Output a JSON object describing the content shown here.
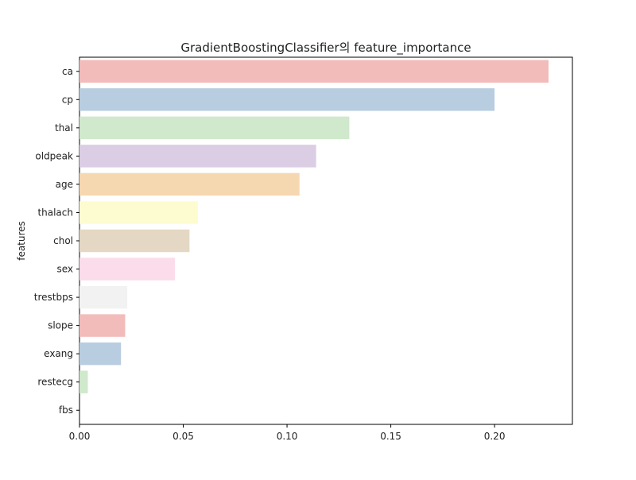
{
  "chart_data": {
    "type": "bar",
    "orientation": "horizontal",
    "title": "GradientBoostingClassifier의 feature_importance",
    "xlabel": "",
    "ylabel": "features",
    "categories": [
      "ca",
      "cp",
      "thal",
      "oldpeak",
      "age",
      "thalach",
      "chol",
      "sex",
      "trestbps",
      "slope",
      "exang",
      "restecg",
      "fbs"
    ],
    "values": [
      0.226,
      0.2,
      0.13,
      0.114,
      0.106,
      0.057,
      0.053,
      0.046,
      0.023,
      0.022,
      0.02,
      0.004,
      0.0
    ],
    "colors": [
      "#f2bcba",
      "#b9cde0",
      "#d0e8cc",
      "#dbcde4",
      "#f5d7b0",
      "#fdfcd0",
      "#e4d8c4",
      "#fadcea",
      "#f2f2f2",
      "#f2bcba",
      "#b9cde0",
      "#d0e8cc",
      "#dbcde4"
    ],
    "xlim": [
      0,
      0.2375
    ],
    "xticks": [
      0.0,
      0.05,
      0.1,
      0.15,
      0.2
    ],
    "xtick_labels": [
      "0.00",
      "0.05",
      "0.10",
      "0.15",
      "0.20"
    ],
    "grid": false,
    "legend": false
  }
}
